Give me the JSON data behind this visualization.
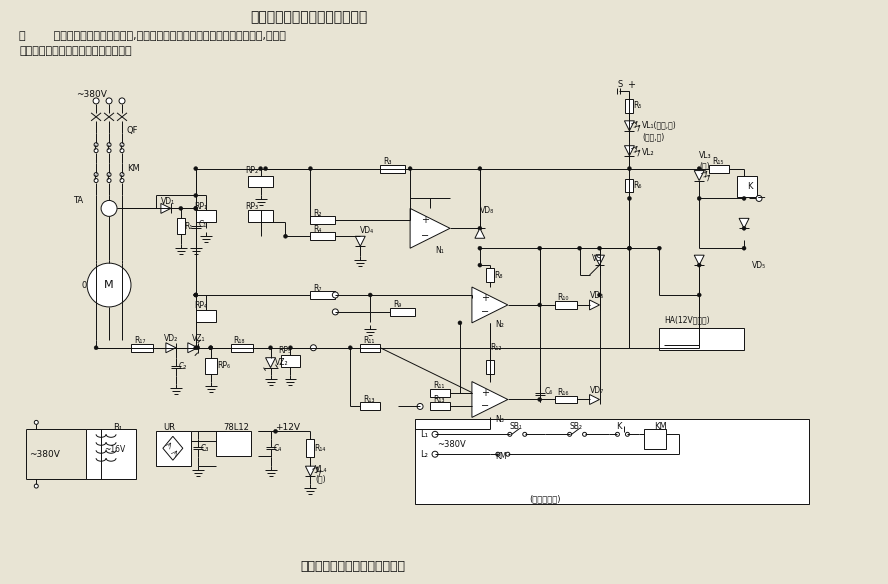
{
  "title_top": "三相鼠笼型电动机综合保护电路",
  "caption_line1": "图        所示为电动机综合保护电路,能对电动机断相、过载、堵转、短路等故障,进行报",
  "caption_line2": "警和切断控制回路电源从而实现保护。",
  "title_bottom": "三相鼠笼型电动机综合保护电路",
  "bg_color": "#e8e4d4",
  "line_color": "#111111",
  "fig_width": 8.88,
  "fig_height": 5.84,
  "dpi": 100
}
